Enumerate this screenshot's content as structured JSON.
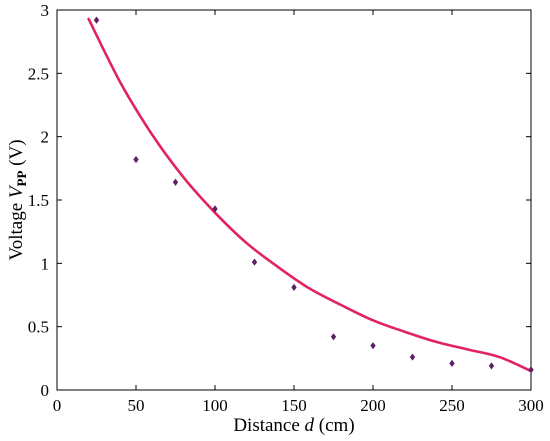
{
  "chart_data": {
    "type": "scatter",
    "xlabel": {
      "prefix": "Distance ",
      "var": "d",
      "suffix": " (cm)"
    },
    "ylabel": {
      "prefix": "Voltage ",
      "var": "V",
      "sub": "PP",
      "suffix": " (V)"
    },
    "xlim": [
      0,
      300
    ],
    "ylim": [
      0,
      3
    ],
    "xticks": [
      "0",
      "50",
      "100",
      "150",
      "200",
      "250",
      "300"
    ],
    "yticks": [
      "0",
      "0.5",
      "1",
      "1.5",
      "2",
      "2.5",
      "3"
    ],
    "grid": false,
    "legend": "none",
    "series": [
      {
        "kind": "points",
        "marker": "diamond",
        "color": "#5b2266",
        "x": [
          25,
          50,
          75,
          100,
          125,
          150,
          175,
          200,
          225,
          250,
          275,
          300
        ],
        "y": [
          2.92,
          1.82,
          1.64,
          1.43,
          1.01,
          0.81,
          0.42,
          0.35,
          0.26,
          0.21,
          0.19,
          0.16
        ]
      },
      {
        "kind": "fit",
        "color": "#e2245e",
        "x": [
          20,
          40,
          60,
          80,
          100,
          120,
          140,
          160,
          180,
          200,
          220,
          240,
          260,
          280,
          300
        ],
        "y": [
          2.93,
          2.43,
          2.02,
          1.68,
          1.4,
          1.16,
          0.97,
          0.8,
          0.67,
          0.55,
          0.46,
          0.38,
          0.32,
          0.26,
          0.15
        ]
      }
    ]
  }
}
